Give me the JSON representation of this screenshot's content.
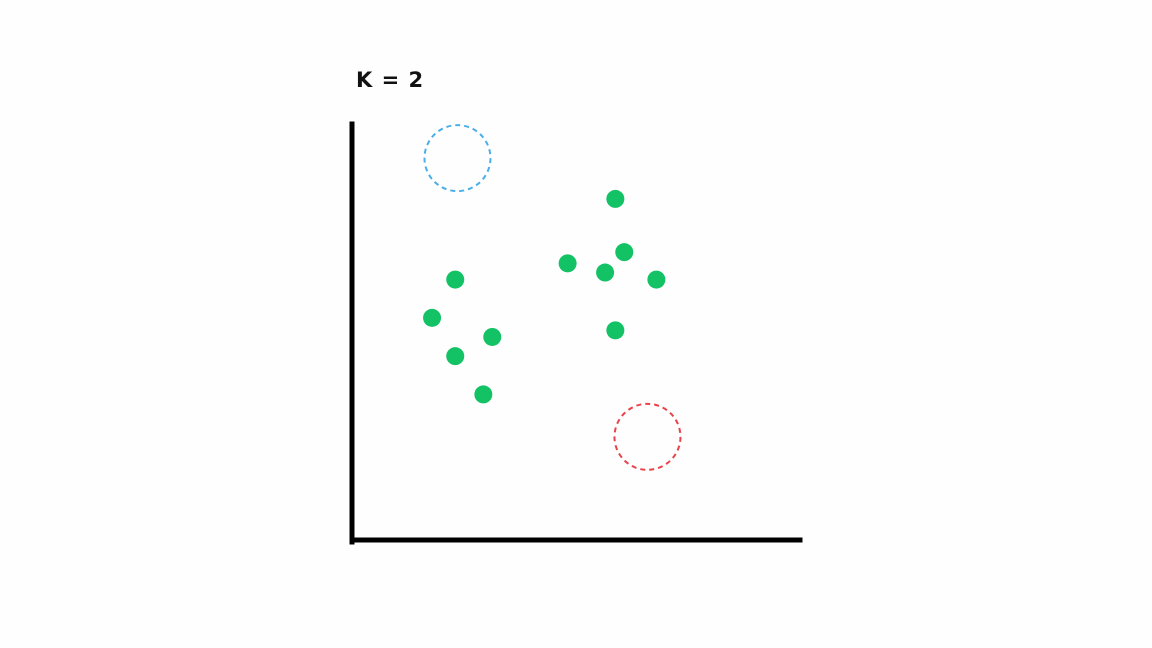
{
  "chart_data": {
    "type": "scatter",
    "title": "K = 2",
    "xlabel": "",
    "ylabel": "",
    "xlim": [
      0,
      100
    ],
    "ylim": [
      0,
      100
    ],
    "grid": false,
    "ticks": false,
    "series": [
      {
        "points": [
          {
            "x": 22.7,
            "y": 62.6
          },
          {
            "x": 17.5,
            "y": 53.4
          },
          {
            "x": 31.0,
            "y": 48.8
          },
          {
            "x": 22.7,
            "y": 44.2
          },
          {
            "x": 29.0,
            "y": 35.0
          },
          {
            "x": 47.9,
            "y": 66.5
          },
          {
            "x": 56.3,
            "y": 64.3
          },
          {
            "x": 60.6,
            "y": 69.2
          },
          {
            "x": 58.6,
            "y": 82.0
          },
          {
            "x": 67.8,
            "y": 62.6
          },
          {
            "x": 58.6,
            "y": 50.4
          }
        ],
        "color": "#13c265"
      }
    ],
    "centroids": [
      {
        "x": 23.2,
        "y": 91.8,
        "color": "#4aaee8",
        "style": "dashed-circle"
      },
      {
        "x": 65.8,
        "y": 24.8,
        "color": "#e8424a",
        "style": "dashed-circle"
      }
    ],
    "axis_color": "#000000"
  }
}
